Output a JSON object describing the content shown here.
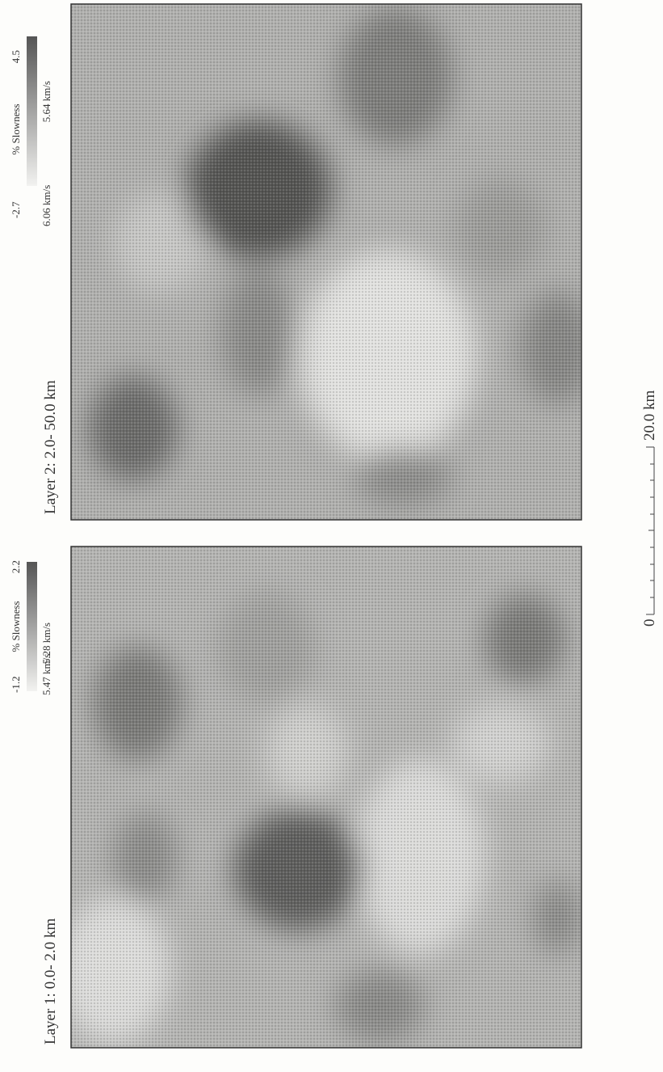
{
  "panels": [
    {
      "label": "Layer 1:  0.0- 2.0 km",
      "colorbar": {
        "min": "-1.2",
        "title": "% Slowness",
        "max": "2.2",
        "min_velocity": "5.47 km/s",
        "max_velocity": "5.28 km/s"
      }
    },
    {
      "label": "Layer 2:  2.0- 50.0 km",
      "colorbar": {
        "min": "-2.7",
        "title": "% Slowness",
        "max": "4.5",
        "min_velocity": "6.06 km/s",
        "max_velocity": "5.64 km/s"
      }
    }
  ],
  "scale_bar": {
    "start": "0",
    "end": "20.0 km"
  }
}
